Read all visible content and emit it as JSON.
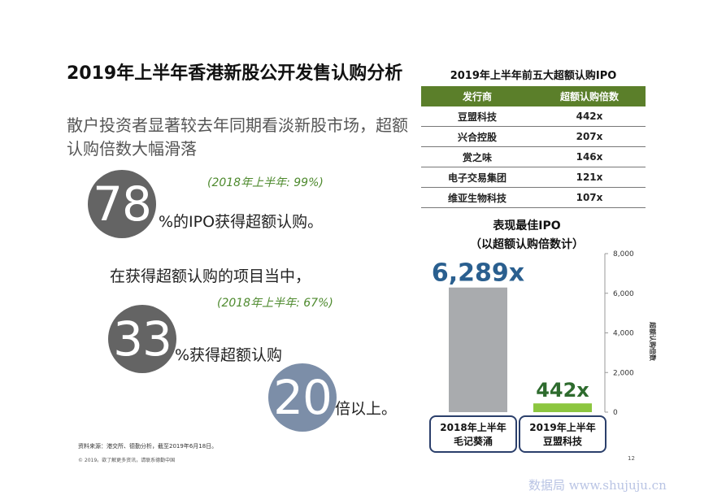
{
  "title": {
    "main": "2019年上半年香港新股公开发售认购分析",
    "sub": "散户投资者显著较去年同期看淡新股市场，超额认购倍数大幅滑落"
  },
  "stats": {
    "stat1": {
      "value": "78",
      "suffix": "%的IPO获得超额认购。",
      "note": "(2018年上半年: 99%)"
    },
    "intro": "在获得超额认购的项目当中，",
    "stat2": {
      "value": "33",
      "suffix": "%获得超额认购",
      "note": "(2018年上半年: 67%)"
    },
    "stat3": {
      "value": "20",
      "suffix": "倍以上。"
    }
  },
  "table": {
    "title": "2019年上半年前五大超额认购IPO",
    "headers": [
      "发行商",
      "超额认购倍数"
    ],
    "rows": [
      [
        "豆盟科技",
        "442x"
      ],
      [
        "兴合控股",
        "207x"
      ],
      [
        "赏之味",
        "146x"
      ],
      [
        "电子交易集团",
        "121x"
      ],
      [
        "维亚生物科技",
        "107x"
      ]
    ]
  },
  "chart_data": {
    "type": "bar",
    "title": "表现最佳IPO\n（以超额认购倍数计）",
    "title_lines": [
      "表现最佳IPO",
      "（以超额认购倍数计）"
    ],
    "categories": [
      "2018年上半年\n毛记葵涌",
      "2019年上半年\n豆盟科技"
    ],
    "category_lines": [
      [
        "2018年上半年",
        "毛记葵涌"
      ],
      [
        "2019年上半年",
        "豆盟科技"
      ]
    ],
    "values": [
      6289,
      442
    ],
    "data_labels": [
      "6,289x",
      "442x"
    ],
    "ylabel": "超额认购倍数",
    "ylim": [
      0,
      8000
    ],
    "yticks": [
      "0",
      "2,000",
      "4,000",
      "6,000",
      "8,000"
    ],
    "ytick_values": [
      0,
      2000,
      4000,
      6000,
      8000
    ],
    "grid": false,
    "colors": {
      "bar1": "#a9abae",
      "bar2": "#8cc63f",
      "label1": "#2a5f8f",
      "label2": "#2e6b2e",
      "box_border": "#2b3f6b"
    }
  },
  "footer": {
    "source": "资料来源：港交所、德勤分析，截至2019年6月18日。",
    "copyright": "© 2019。欲了解更多资讯，请联系德勤中国",
    "page": "12",
    "watermark": "数据局 www.shujuju.cn"
  }
}
